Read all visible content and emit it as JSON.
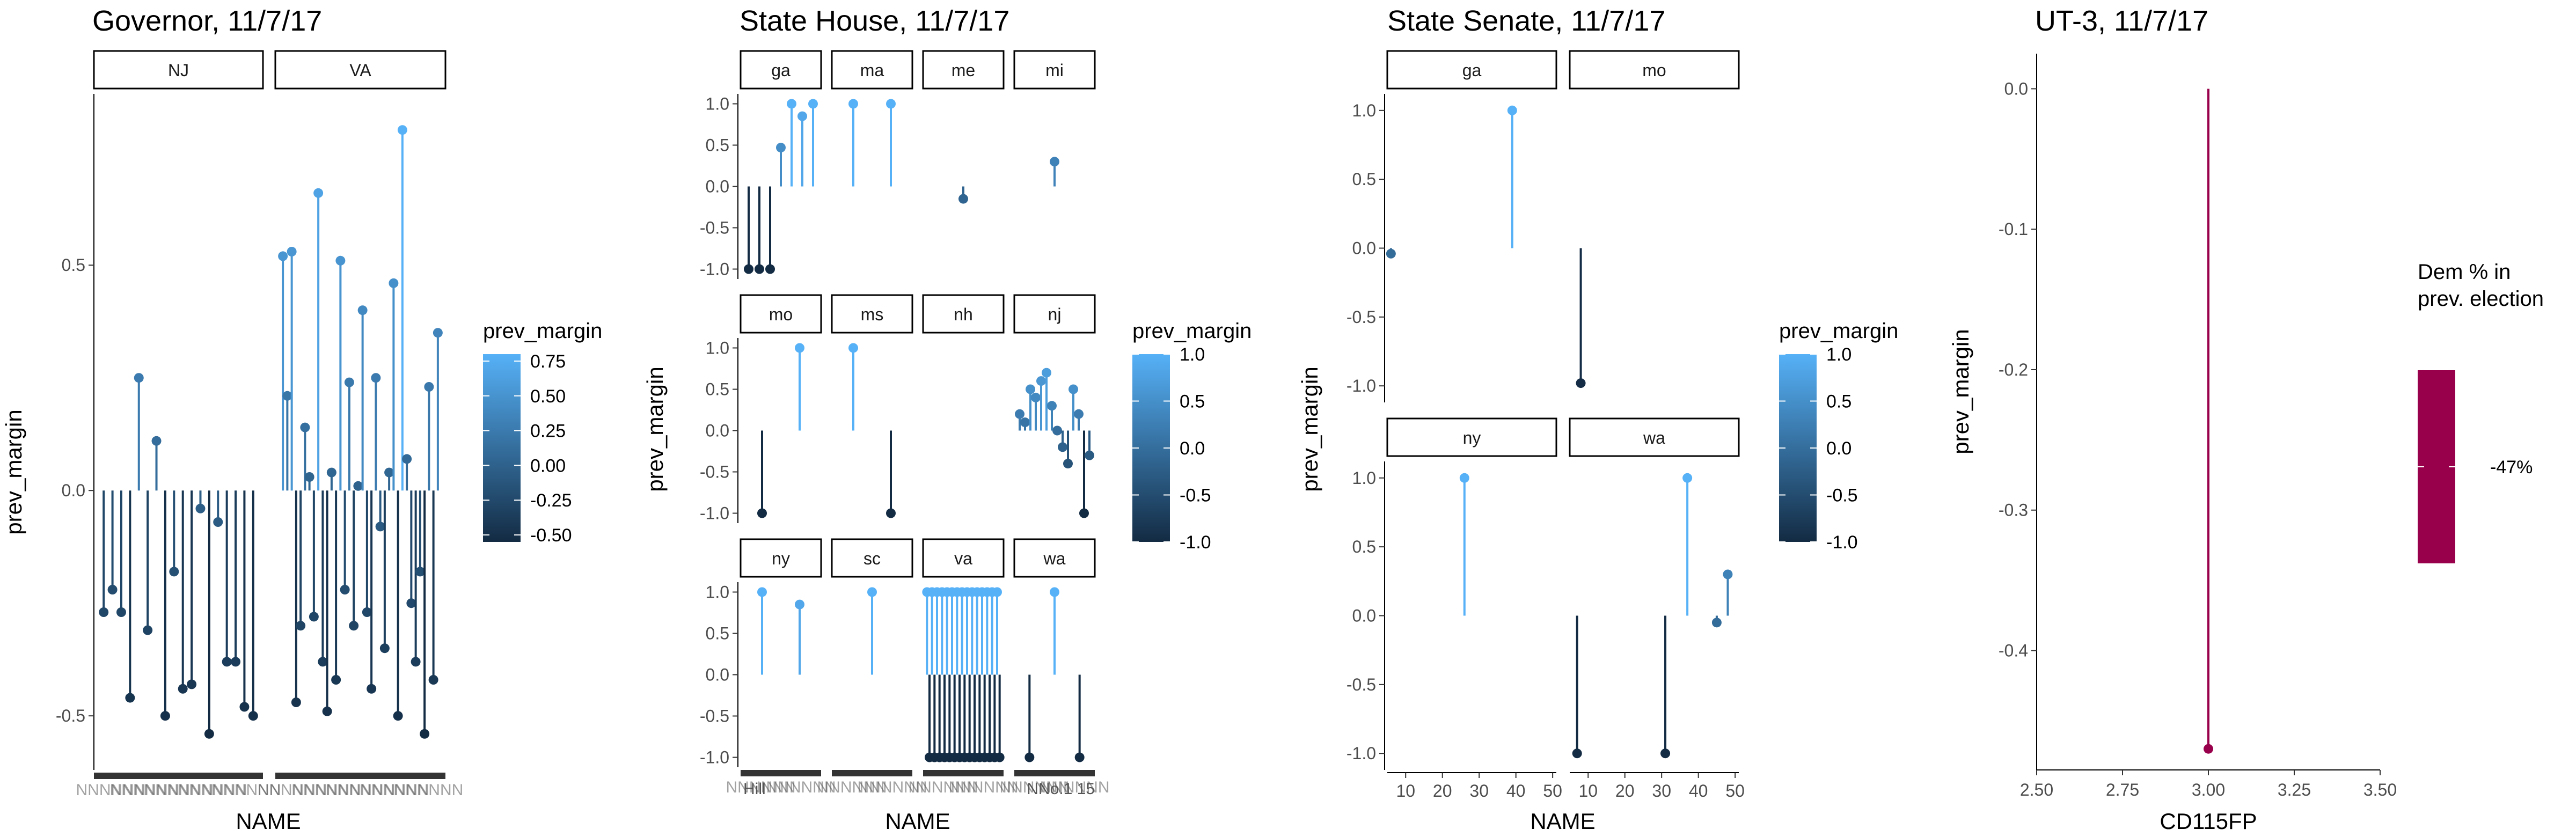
{
  "chart_data": [
    {
      "type": "lollipop",
      "title": "Governor, 11/7/17",
      "xlabel": "NAME",
      "ylabel": "prev_margin",
      "facets": [
        "NJ",
        "VA"
      ],
      "yticks": [
        "0.5",
        "0.0",
        "-0.5"
      ],
      "ytick_values": [
        0.5,
        0.0,
        -0.5
      ],
      "ylim": [
        -0.62,
        0.88
      ],
      "legend": {
        "title": "prev_margin",
        "labels": [
          "0.75",
          "0.50",
          "0.25",
          "0.00",
          "-0.25",
          "-0.50"
        ],
        "values": [
          0.75,
          0.5,
          0.25,
          0.0,
          -0.25,
          -0.5
        ],
        "range": [
          -0.55,
          0.8
        ]
      },
      "series": [
        {
          "facet": "NJ",
          "values": [
            -0.27,
            -0.22,
            -0.27,
            -0.46,
            0.25,
            -0.31,
            0.11,
            -0.5,
            -0.18,
            -0.44,
            -0.43,
            -0.04,
            -0.54,
            -0.07,
            -0.38,
            -0.38,
            -0.48,
            -0.5
          ]
        },
        {
          "facet": "VA",
          "values": [
            0.52,
            0.21,
            0.53,
            -0.47,
            -0.3,
            0.14,
            0.03,
            -0.28,
            0.66,
            -0.38,
            -0.49,
            0.04,
            -0.42,
            0.51,
            -0.22,
            0.24,
            -0.3,
            0.01,
            0.4,
            -0.27,
            -0.44,
            0.25,
            -0.08,
            -0.35,
            0.04,
            0.46,
            -0.5,
            0.8,
            0.07,
            -0.25,
            -0.38,
            -0.18,
            -0.54,
            0.23,
            -0.42,
            0.35
          ]
        }
      ],
      "xtick_labels_note": "overlapping county names, illegible"
    },
    {
      "type": "lollipop",
      "title": "State House, 11/7/17",
      "xlabel": "NAME",
      "ylabel": "prev_margin",
      "facets": [
        "ga",
        "ma",
        "me",
        "mi",
        "mo",
        "ms",
        "nh",
        "nj",
        "ny",
        "sc",
        "va",
        "wa"
      ],
      "yticks": [
        "1.0",
        "0.5",
        "0.0",
        "-0.5",
        "-1.0"
      ],
      "ytick_values": [
        1.0,
        0.5,
        0.0,
        -0.5,
        -1.0
      ],
      "ylim": [
        -1.12,
        1.12
      ],
      "legend": {
        "title": "prev_margin",
        "labels": [
          "1.0",
          "0.5",
          "0.0",
          "-0.5",
          "-1.0"
        ],
        "values": [
          1.0,
          0.5,
          0.0,
          -0.5,
          -1.0
        ],
        "range": [
          -1.0,
          1.0
        ]
      },
      "series": [
        {
          "facet": "ga",
          "values": [
            -1.0,
            -1.0,
            -1.0,
            0.47,
            1.0,
            0.85,
            1.0
          ]
        },
        {
          "facet": "ma",
          "values": [
            1.0,
            1.0
          ]
        },
        {
          "facet": "me",
          "values": [
            -0.15
          ]
        },
        {
          "facet": "mi",
          "values": [
            0.3
          ]
        },
        {
          "facet": "mo",
          "values": [
            -1.0,
            1.0
          ]
        },
        {
          "facet": "ms",
          "values": [
            1.0,
            -1.0
          ]
        },
        {
          "facet": "nh",
          "values": []
        },
        {
          "facet": "nj",
          "values": [
            0.2,
            0.1,
            0.5,
            0.4,
            0.6,
            0.7,
            0.3,
            0.0,
            -0.2,
            -0.4,
            0.5,
            0.2,
            -1.0,
            -0.3
          ]
        },
        {
          "facet": "ny",
          "values": [
            1.0,
            0.85
          ]
        },
        {
          "facet": "sc",
          "values": [
            1.0
          ]
        },
        {
          "facet": "va",
          "values": [
            1.0,
            -1.0,
            1.0,
            -1.0,
            1.0,
            -1.0,
            1.0,
            -1.0,
            1.0,
            -1.0,
            1.0,
            -1.0,
            1.0,
            -1.0,
            1.0,
            -1.0,
            1.0,
            -1.0,
            1.0,
            -1.0,
            1.0,
            -1.0,
            1.0,
            -1.0,
            1.0,
            -1.0,
            1.0,
            -1.0,
            1.0,
            -1.0
          ]
        },
        {
          "facet": "wa",
          "values": [
            -1.0,
            1.0,
            -1.0
          ]
        }
      ],
      "xtick_labels_text": [
        "Hill",
        "NNo.1 15"
      ]
    },
    {
      "type": "lollipop",
      "title": "State Senate, 11/7/17",
      "xlabel": "NAME",
      "ylabel": "prev_margin",
      "facets": [
        "ga",
        "mo",
        "ny",
        "wa"
      ],
      "yticks": [
        "1.0",
        "0.5",
        "0.0",
        "-0.5",
        "-1.0"
      ],
      "ytick_values": [
        1.0,
        0.5,
        0.0,
        -0.5,
        -1.0
      ],
      "ylim": [
        -1.12,
        1.12
      ],
      "xticks": [
        "10",
        "20",
        "30",
        "40",
        "50"
      ],
      "xtick_values": [
        10,
        20,
        30,
        40,
        50
      ],
      "xlim": [
        5,
        51
      ],
      "legend": {
        "title": "prev_margin",
        "labels": [
          "1.0",
          "0.5",
          "0.0",
          "-0.5",
          "-1.0"
        ],
        "values": [
          1.0,
          0.5,
          0.0,
          -0.5,
          -1.0
        ],
        "range": [
          -1.0,
          1.0
        ]
      },
      "series": [
        {
          "facet": "ga",
          "points": [
            [
              6,
              -0.04
            ],
            [
              39,
              1.0
            ]
          ]
        },
        {
          "facet": "mo",
          "points": [
            [
              8,
              -0.98
            ]
          ]
        },
        {
          "facet": "ny",
          "points": [
            [
              26,
              1.0
            ]
          ]
        },
        {
          "facet": "wa",
          "points": [
            [
              7,
              -1.0
            ],
            [
              31,
              -1.0
            ],
            [
              37,
              1.0
            ],
            [
              45,
              -0.05
            ],
            [
              48,
              0.3
            ]
          ]
        }
      ]
    },
    {
      "type": "lollipop",
      "title": "UT-3, 11/7/17",
      "xlabel": "CD115FP",
      "ylabel": "prev_margin",
      "yticks": [
        "0.0",
        "-0.1",
        "-0.2",
        "-0.3",
        "-0.4"
      ],
      "ytick_values": [
        0.0,
        -0.1,
        -0.2,
        -0.3,
        -0.4
      ],
      "ylim": [
        -0.485,
        0.025
      ],
      "xticks": [
        "2.50",
        "2.75",
        "3.00",
        "3.25",
        "3.50"
      ],
      "xtick_values": [
        2.5,
        2.75,
        3.0,
        3.25,
        3.5
      ],
      "xlim": [
        2.5,
        3.5
      ],
      "points": [
        [
          3.0,
          -0.47
        ]
      ],
      "legend": {
        "title": "Dem % in\nprev. election",
        "labels": [
          "-47%"
        ],
        "values": [
          -0.47
        ]
      },
      "colors": {
        "mark": "#99004c"
      }
    }
  ]
}
